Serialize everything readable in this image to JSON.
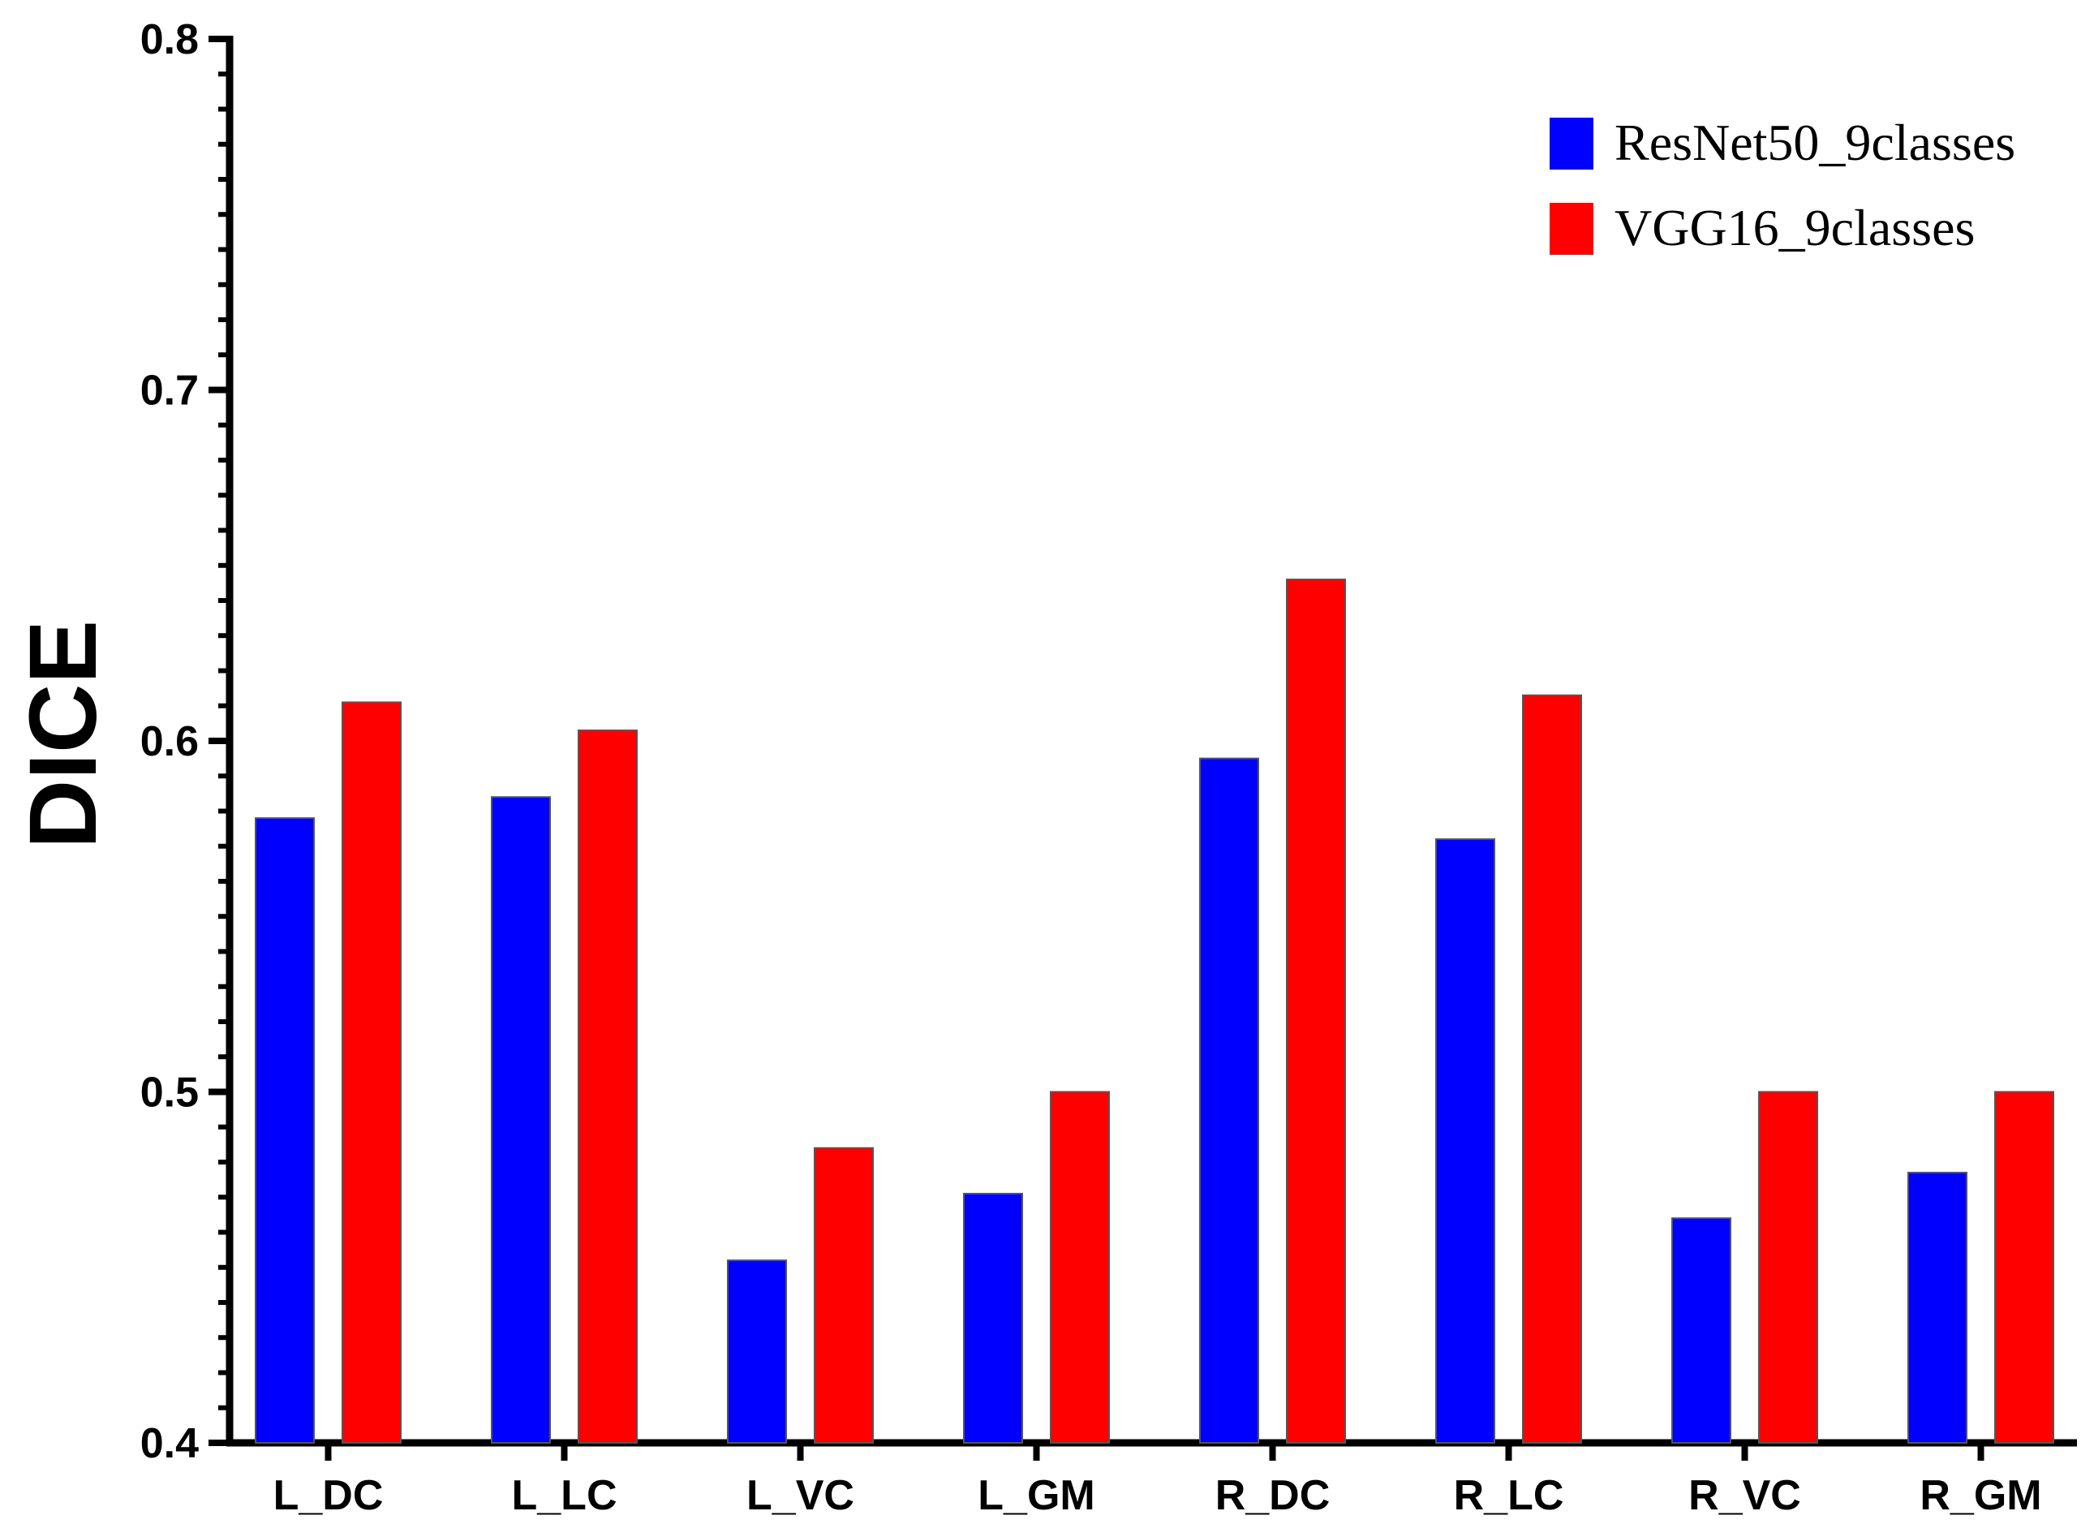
{
  "chart_data": {
    "type": "bar",
    "title": "",
    "xlabel": "",
    "ylabel": "DICE",
    "ylim": [
      0.4,
      0.8
    ],
    "yticks": [
      "0.4",
      "0.5",
      "0.6",
      "0.7",
      "0.8"
    ],
    "grid": false,
    "legend_position": "top-right",
    "categories": [
      "L_DC",
      "L_LC",
      "L_VC",
      "L_GM",
      "R_DC",
      "R_LC",
      "R_VC",
      "R_GM"
    ],
    "series": [
      {
        "name": "ResNet50_9classes",
        "color": "#0000ff",
        "values": [
          0.578,
          0.584,
          0.452,
          0.471,
          0.595,
          0.572,
          0.464,
          0.477
        ]
      },
      {
        "name": "VGG16_9classes",
        "color": "#ff0000",
        "values": [
          0.611,
          0.603,
          0.484,
          0.5,
          0.646,
          0.613,
          0.5,
          0.5
        ]
      }
    ]
  }
}
